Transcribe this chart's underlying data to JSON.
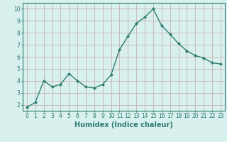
{
  "x": [
    0,
    1,
    2,
    3,
    4,
    5,
    6,
    7,
    8,
    9,
    10,
    11,
    12,
    13,
    14,
    15,
    16,
    17,
    18,
    19,
    20,
    21,
    22,
    23
  ],
  "y": [
    1.8,
    2.2,
    4.0,
    3.5,
    3.7,
    4.6,
    4.0,
    3.5,
    3.4,
    3.7,
    4.5,
    6.6,
    7.7,
    8.8,
    9.3,
    10.0,
    8.6,
    7.9,
    7.1,
    6.5,
    6.1,
    5.9,
    5.5,
    5.4
  ],
  "line_color": "#2e7d6e",
  "marker": "D",
  "marker_size": 2.0,
  "bg_color": "#d8f0ee",
  "grid_color": "#c4a8a8",
  "xlabel": "Humidex (Indice chaleur)",
  "ylim": [
    1.5,
    10.5
  ],
  "xlim": [
    -0.5,
    23.5
  ],
  "yticks": [
    2,
    3,
    4,
    5,
    6,
    7,
    8,
    9,
    10
  ],
  "xticks": [
    0,
    1,
    2,
    3,
    4,
    5,
    6,
    7,
    8,
    9,
    10,
    11,
    12,
    13,
    14,
    15,
    16,
    17,
    18,
    19,
    20,
    21,
    22,
    23
  ],
  "tick_fontsize": 5.5,
  "label_fontsize": 7.0,
  "line_width": 1.0
}
